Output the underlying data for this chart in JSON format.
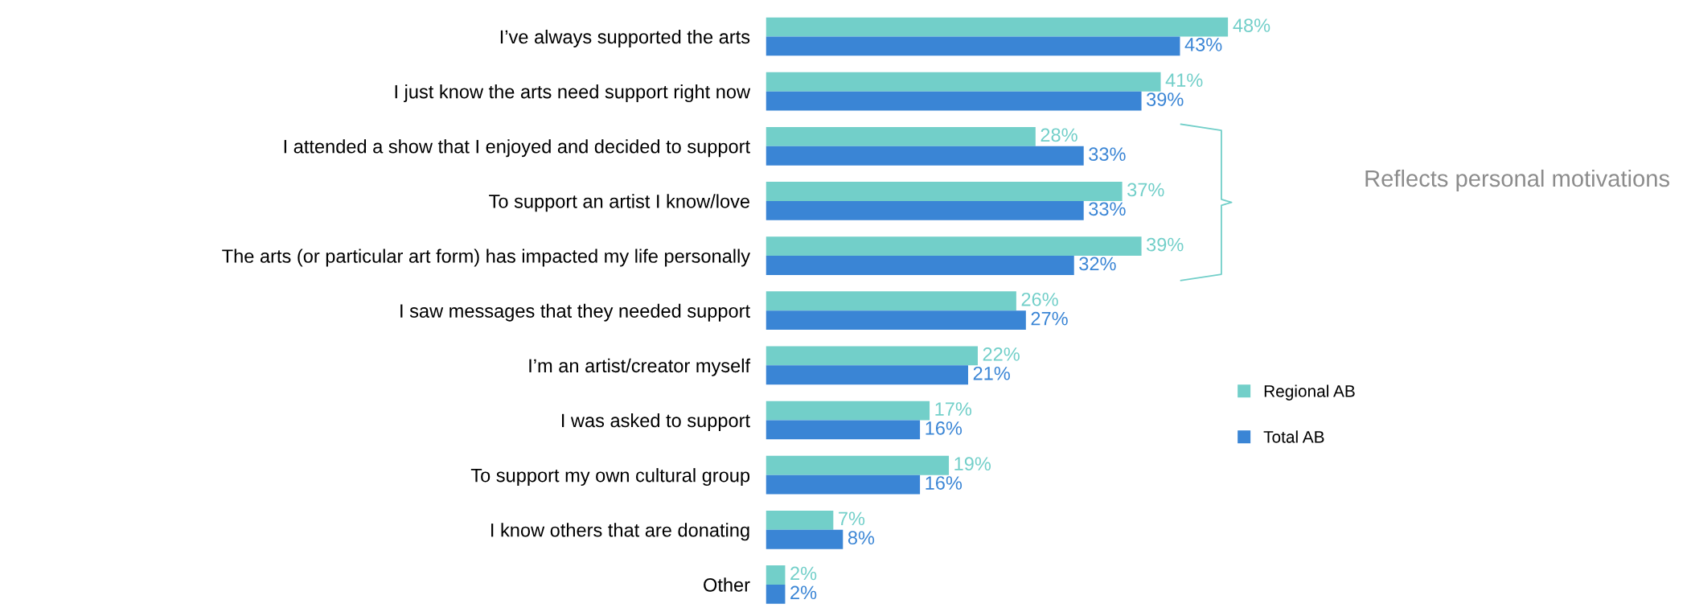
{
  "chart_data": {
    "type": "bar",
    "orientation": "horizontal",
    "categories": [
      "I’ve always supported the arts",
      "I just know the arts need support right now",
      "I attended a show that I enjoyed and decided to support",
      "To support an artist I know/love",
      "The arts (or particular art form) has impacted my life personally",
      "I saw messages that they needed support",
      "I’m an artist/creator myself",
      "I was asked to support",
      "To support my own cultural group",
      "I know others that are donating",
      "Other"
    ],
    "series": [
      {
        "name": "Regional AB",
        "color": "#72cfc9",
        "values": [
          48,
          41,
          28,
          37,
          39,
          26,
          22,
          17,
          19,
          7,
          2
        ],
        "value_labels": [
          "48%",
          "41%",
          "28%",
          "37%",
          "39%",
          "26%",
          "22%",
          "17%",
          "19%",
          "7%",
          "2%"
        ]
      },
      {
        "name": "Total AB",
        "color": "#3a85d5",
        "values": [
          43,
          39,
          33,
          33,
          32,
          27,
          21,
          16,
          16,
          8,
          2
        ],
        "value_labels": [
          "43%",
          "39%",
          "33%",
          "33%",
          "32%",
          "27%",
          "21%",
          "16%",
          "16%",
          "8%",
          "2%"
        ]
      }
    ],
    "legend": "bottom right",
    "grid": false,
    "annotations": [
      "Reflects personal motivations"
    ]
  }
}
